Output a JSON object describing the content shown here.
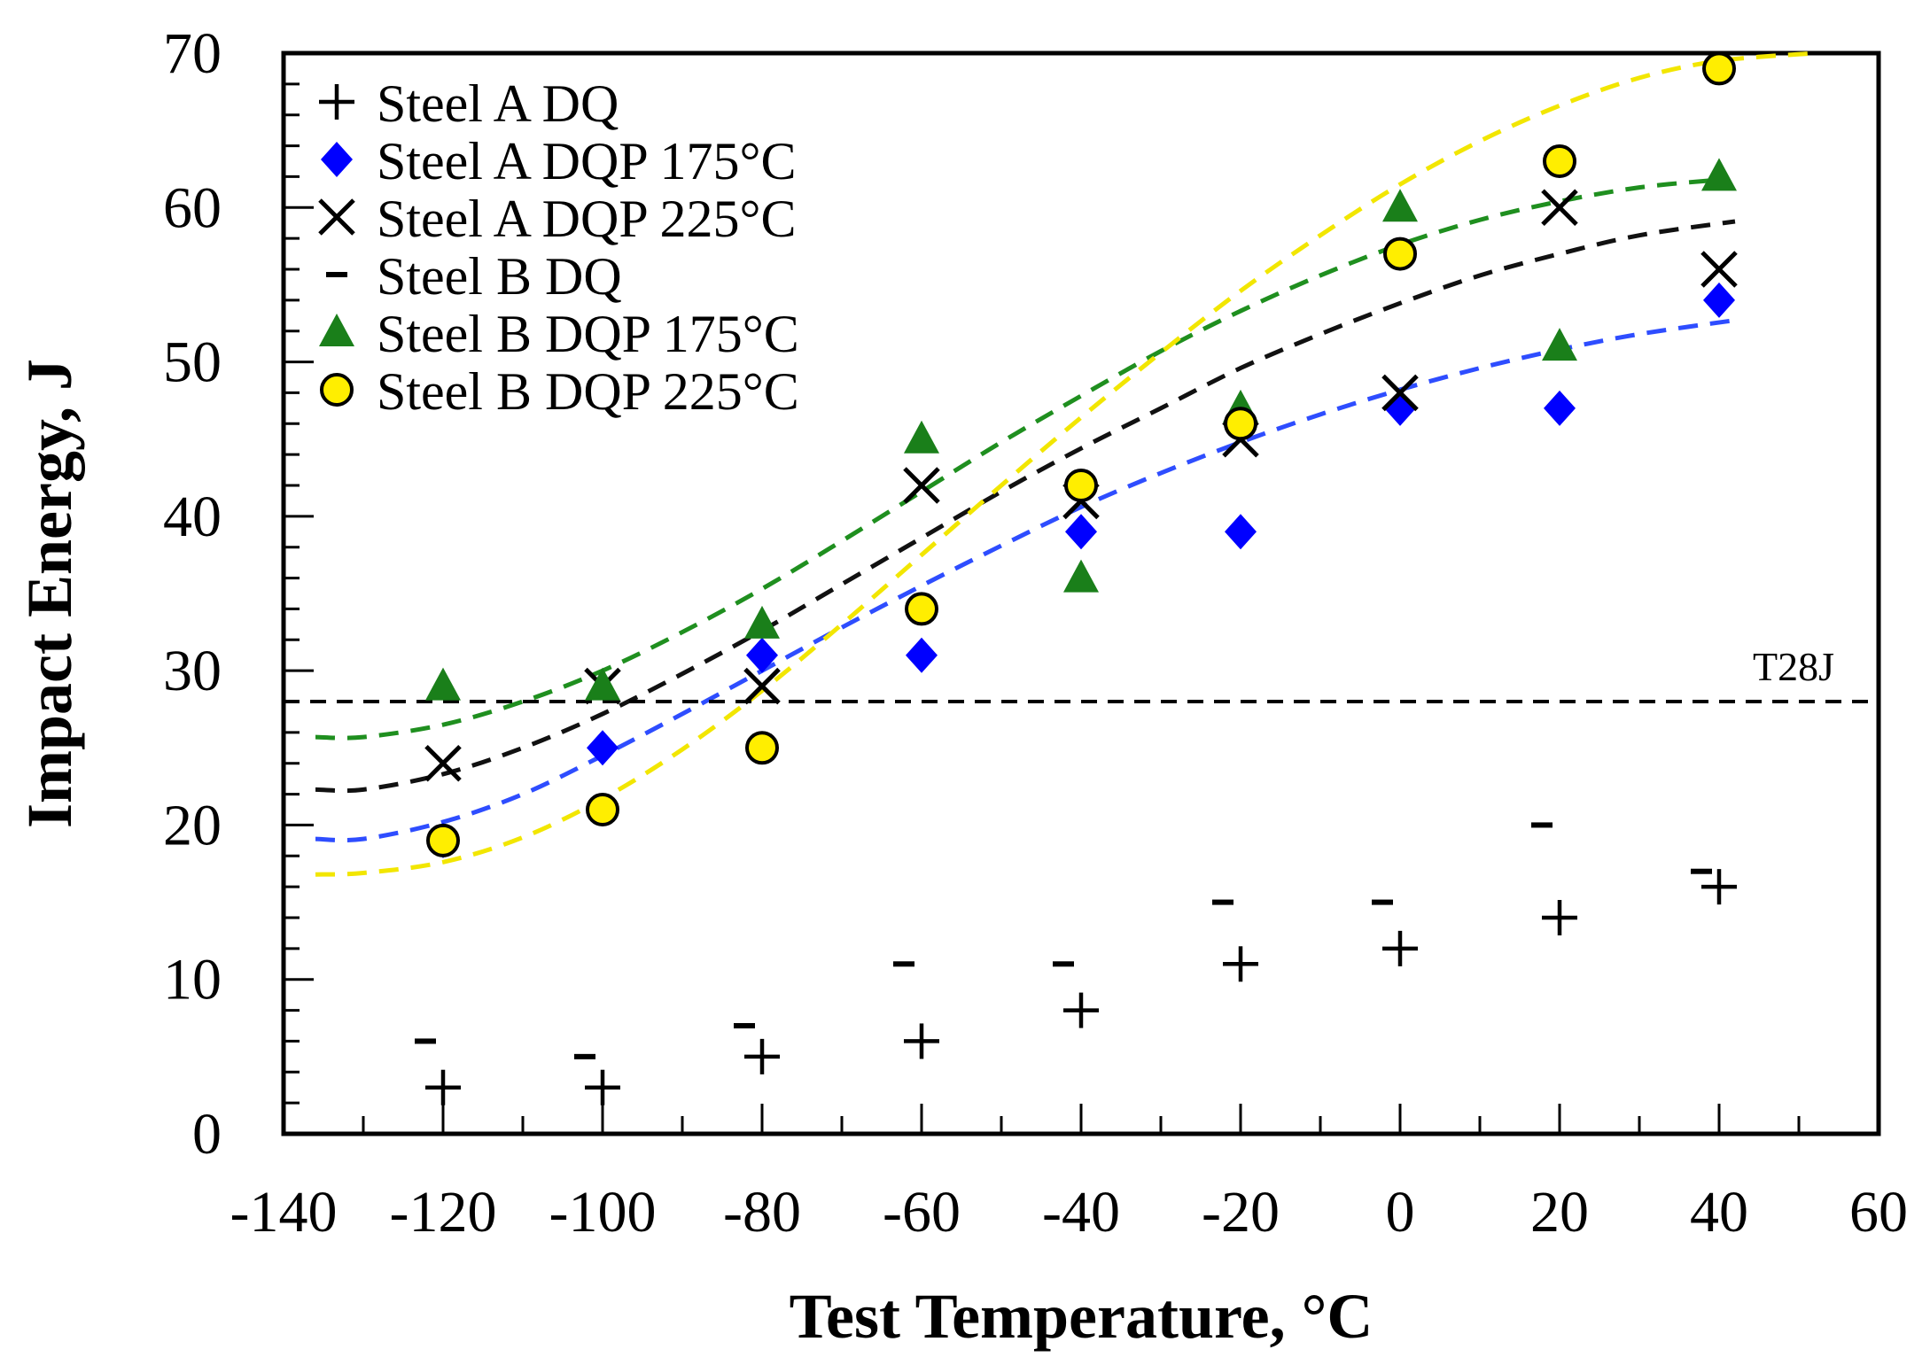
{
  "chart_data": {
    "type": "scatter",
    "title": "",
    "xlabel": "Test Temperature, °C",
    "ylabel": "Impact Energy, J",
    "xlim": [
      -140,
      60
    ],
    "ylim": [
      0,
      70
    ],
    "x_ticks": [
      -140,
      -120,
      -100,
      -80,
      -60,
      -40,
      -20,
      0,
      20,
      40,
      60
    ],
    "x_tick_labels": [
      "-140",
      "-120",
      "-100",
      "-80",
      "-60",
      "-40",
      "-20",
      "0",
      "20",
      "40",
      "60"
    ],
    "y_ticks": [
      0,
      10,
      20,
      30,
      40,
      50,
      60,
      70
    ],
    "y_tick_labels": [
      "0",
      "10",
      "20",
      "30",
      "40",
      "50",
      "60",
      "70"
    ],
    "grid": false,
    "legend_position": "top-left",
    "reference_line": {
      "label": "T28J",
      "y": 28,
      "color": "#000000"
    },
    "series": [
      {
        "name": "Steel A DQ",
        "marker": "plus",
        "color": "#000000",
        "x": [
          -120,
          -100,
          -80,
          -60,
          -40,
          -20,
          0,
          20,
          40
        ],
        "y": [
          3,
          3,
          5,
          6,
          8,
          11,
          12,
          14,
          16
        ]
      },
      {
        "name": "Steel A DQP 175°C",
        "marker": "diamond",
        "color": "#0000ff",
        "x": [
          -120,
          -100,
          -80,
          -60,
          -40,
          -20,
          0,
          20,
          40
        ],
        "y": [
          19,
          25,
          31,
          31,
          39,
          39,
          47,
          47,
          54
        ],
        "fit_color": "#2e4dff",
        "fit": [
          [
            -136,
            19.1
          ],
          [
            -130,
            19.1
          ],
          [
            -120,
            20.2
          ],
          [
            -110,
            22
          ],
          [
            -100,
            24.5
          ],
          [
            -90,
            27.2
          ],
          [
            -80,
            30
          ],
          [
            -70,
            32.8
          ],
          [
            -60,
            35.5
          ],
          [
            -50,
            38.1
          ],
          [
            -40,
            40.6
          ],
          [
            -30,
            42.8
          ],
          [
            -20,
            44.8
          ],
          [
            -10,
            46.6
          ],
          [
            0,
            48.2
          ],
          [
            10,
            49.6
          ],
          [
            20,
            50.8
          ],
          [
            30,
            51.8
          ],
          [
            42,
            52.7
          ]
        ]
      },
      {
        "name": "Steel A DQP 225°C",
        "marker": "cross",
        "color": "#000000",
        "x": [
          -120,
          -100,
          -80,
          -60,
          -40,
          -20,
          0,
          20,
          40
        ],
        "y": [
          24,
          29,
          29,
          42,
          41,
          45,
          48,
          60,
          56
        ],
        "fit_color": "#111111",
        "fit": [
          [
            -136,
            22.3
          ],
          [
            -130,
            22.3
          ],
          [
            -120,
            23.3
          ],
          [
            -110,
            25
          ],
          [
            -100,
            27.2
          ],
          [
            -90,
            29.8
          ],
          [
            -80,
            32.6
          ],
          [
            -70,
            35.6
          ],
          [
            -60,
            38.6
          ],
          [
            -50,
            41.6
          ],
          [
            -40,
            44.4
          ],
          [
            -30,
            47
          ],
          [
            -20,
            49.6
          ],
          [
            -10,
            51.8
          ],
          [
            0,
            53.8
          ],
          [
            10,
            55.6
          ],
          [
            20,
            57
          ],
          [
            30,
            58.2
          ],
          [
            42,
            59.1
          ]
        ]
      },
      {
        "name": "Steel B DQ",
        "marker": "dash",
        "color": "#000000",
        "x": [
          -120,
          -100,
          -80,
          -60,
          -40,
          -20,
          0,
          20,
          40
        ],
        "y": [
          6,
          5,
          7,
          11,
          11,
          15,
          15,
          20,
          17
        ]
      },
      {
        "name": "Steel B DQP 175°C",
        "marker": "triangle",
        "color": "#1a7f1a",
        "x": [
          -120,
          -100,
          -80,
          -60,
          -40,
          -20,
          0,
          20,
          40
        ],
        "y": [
          29,
          29,
          33,
          45,
          36,
          47,
          60,
          51,
          62
        ],
        "fit_color": "#1f8f1f",
        "fit": [
          [
            -136,
            25.7
          ],
          [
            -130,
            25.7
          ],
          [
            -120,
            26.5
          ],
          [
            -110,
            28
          ],
          [
            -100,
            30
          ],
          [
            -90,
            32.5
          ],
          [
            -80,
            35.3
          ],
          [
            -70,
            38.4
          ],
          [
            -60,
            41.6
          ],
          [
            -50,
            44.8
          ],
          [
            -40,
            47.8
          ],
          [
            -30,
            50.7
          ],
          [
            -20,
            53.3
          ],
          [
            -10,
            55.6
          ],
          [
            0,
            57.6
          ],
          [
            10,
            59.2
          ],
          [
            20,
            60.4
          ],
          [
            30,
            61.3
          ],
          [
            40,
            61.8
          ]
        ]
      },
      {
        "name": "Steel B DQP 225°C",
        "marker": "circle",
        "color": "#ffee00",
        "x": [
          -120,
          -100,
          -80,
          -60,
          -40,
          -20,
          0,
          20,
          40
        ],
        "y": [
          19,
          21,
          25,
          34,
          42,
          46,
          57,
          63,
          69
        ],
        "fit_color": "#f2e600",
        "fit": [
          [
            -136,
            16.8
          ],
          [
            -130,
            16.9
          ],
          [
            -120,
            17.6
          ],
          [
            -110,
            19.2
          ],
          [
            -100,
            21.7
          ],
          [
            -90,
            24.9
          ],
          [
            -80,
            28.7
          ],
          [
            -70,
            33
          ],
          [
            -60,
            37.5
          ],
          [
            -50,
            42
          ],
          [
            -40,
            46.4
          ],
          [
            -30,
            50.6
          ],
          [
            -20,
            54.6
          ],
          [
            -10,
            58.2
          ],
          [
            0,
            61.5
          ],
          [
            10,
            64.3
          ],
          [
            20,
            66.6
          ],
          [
            30,
            68.4
          ],
          [
            40,
            69.5
          ],
          [
            52,
            70
          ]
        ]
      }
    ]
  }
}
